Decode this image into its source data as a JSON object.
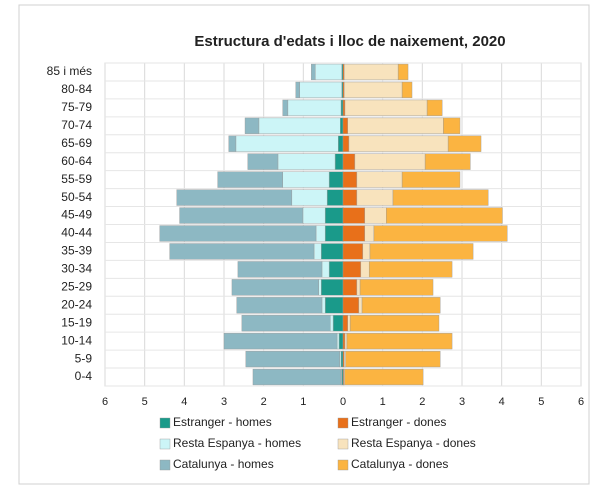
{
  "chart_data": {
    "type": "pyramid",
    "title": "Estructura d'edats i lloc de naixement, 2020",
    "categories": [
      "85 i més",
      "80-84",
      "75-79",
      "70-74",
      "65-69",
      "60-64",
      "55-59",
      "50-54",
      "45-49",
      "40-44",
      "35-39",
      "30-34",
      "25-29",
      "20-24",
      "15-19",
      "10-14",
      "5-9",
      "0-4"
    ],
    "series": [
      {
        "name": "Estranger - homes",
        "color": "#1a9a8a",
        "values": [
          -0.03,
          -0.03,
          -0.05,
          -0.07,
          -0.12,
          -0.2,
          -0.35,
          -0.4,
          -0.45,
          -0.45,
          -0.55,
          -0.35,
          -0.55,
          -0.45,
          -0.25,
          -0.1,
          -0.05,
          -0.03
        ]
      },
      {
        "name": "Estranger - dones",
        "color": "#e8701a",
        "values": [
          0.03,
          0.03,
          0.05,
          0.12,
          0.15,
          0.3,
          0.35,
          0.35,
          0.55,
          0.55,
          0.5,
          0.45,
          0.35,
          0.4,
          0.12,
          0.05,
          0.03,
          0.02
        ]
      },
      {
        "name": "Resta Espanya - homes",
        "color": "#ccf5f7",
        "values": [
          -0.67,
          -1.06,
          -1.34,
          -2.05,
          -2.58,
          -1.44,
          -1.17,
          -0.89,
          -0.56,
          -0.23,
          -0.18,
          -0.18,
          -0.06,
          -0.08,
          -0.07,
          -0.05,
          -0.03,
          -0.02
        ]
      },
      {
        "name": "Resta Espanya - dones",
        "color": "#f8e3bd",
        "values": [
          1.36,
          1.46,
          2.07,
          2.41,
          2.5,
          1.77,
          1.14,
          0.91,
          0.54,
          0.23,
          0.18,
          0.21,
          0.08,
          0.08,
          0.06,
          0.05,
          0.04,
          0.02
        ]
      },
      {
        "name": "Catalunya - homes",
        "color": "#8db8c3",
        "values": [
          -0.1,
          -0.1,
          -0.13,
          -0.35,
          -0.18,
          -0.76,
          -1.64,
          -2.9,
          -3.11,
          -3.94,
          -3.64,
          -2.12,
          -2.19,
          -2.15,
          -2.23,
          -2.85,
          -2.37,
          -2.22
        ]
      },
      {
        "name": "Catalunya - dones",
        "color": "#fbb441",
        "values": [
          0.25,
          0.25,
          0.38,
          0.42,
          0.83,
          1.14,
          1.46,
          2.4,
          2.93,
          3.36,
          2.6,
          2.09,
          1.84,
          1.97,
          2.24,
          2.65,
          2.38,
          1.98
        ]
      }
    ],
    "xlim": [
      -6,
      6
    ],
    "xticks": [
      {
        "value": -6,
        "label": "6"
      },
      {
        "value": -5,
        "label": "5"
      },
      {
        "value": -4,
        "label": "4"
      },
      {
        "value": -3,
        "label": "3"
      },
      {
        "value": -2,
        "label": "2"
      },
      {
        "value": -1,
        "label": "1"
      },
      0,
      1,
      2,
      3,
      4,
      5,
      6
    ],
    "grid": true
  }
}
